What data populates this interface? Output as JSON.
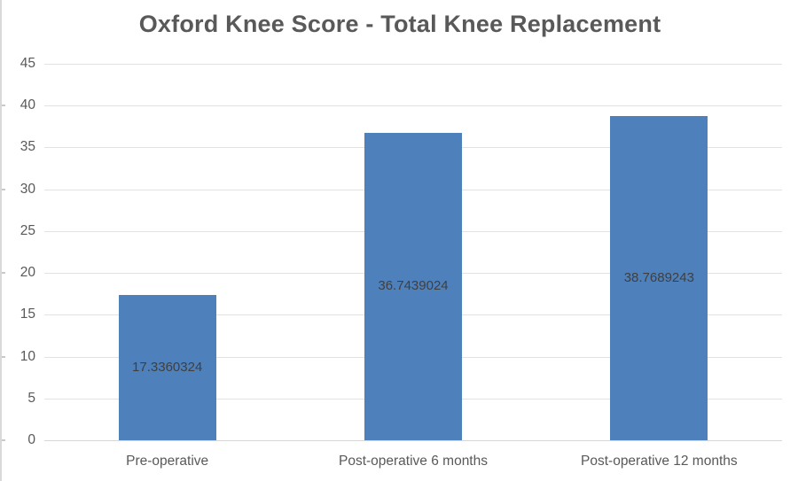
{
  "chart_data": {
    "type": "bar",
    "title": "Oxford Knee Score - Total Knee Replacement",
    "categories": [
      "Pre-operative",
      "Post-operative 6 months",
      "Post-operative 12 months"
    ],
    "values": [
      17.3360324,
      36.7439024,
      38.7689243
    ],
    "value_labels": [
      "17.3360324",
      "36.7439024",
      "38.7689243"
    ],
    "y_ticks": [
      0,
      5,
      10,
      15,
      20,
      25,
      30,
      35,
      40,
      45
    ],
    "ylim": [
      0,
      45
    ],
    "xlabel": "",
    "ylabel": "",
    "grid": "horizontal",
    "legend": "none",
    "data_label_position": "inside-center",
    "colors": {
      "bar": "#4e81bc",
      "title_text": "#595959",
      "axis_text": "#595959",
      "value_label_text": "#3f3f3f",
      "gridline": "#e2e2e2",
      "frame_border": "#d9d9d9"
    }
  }
}
